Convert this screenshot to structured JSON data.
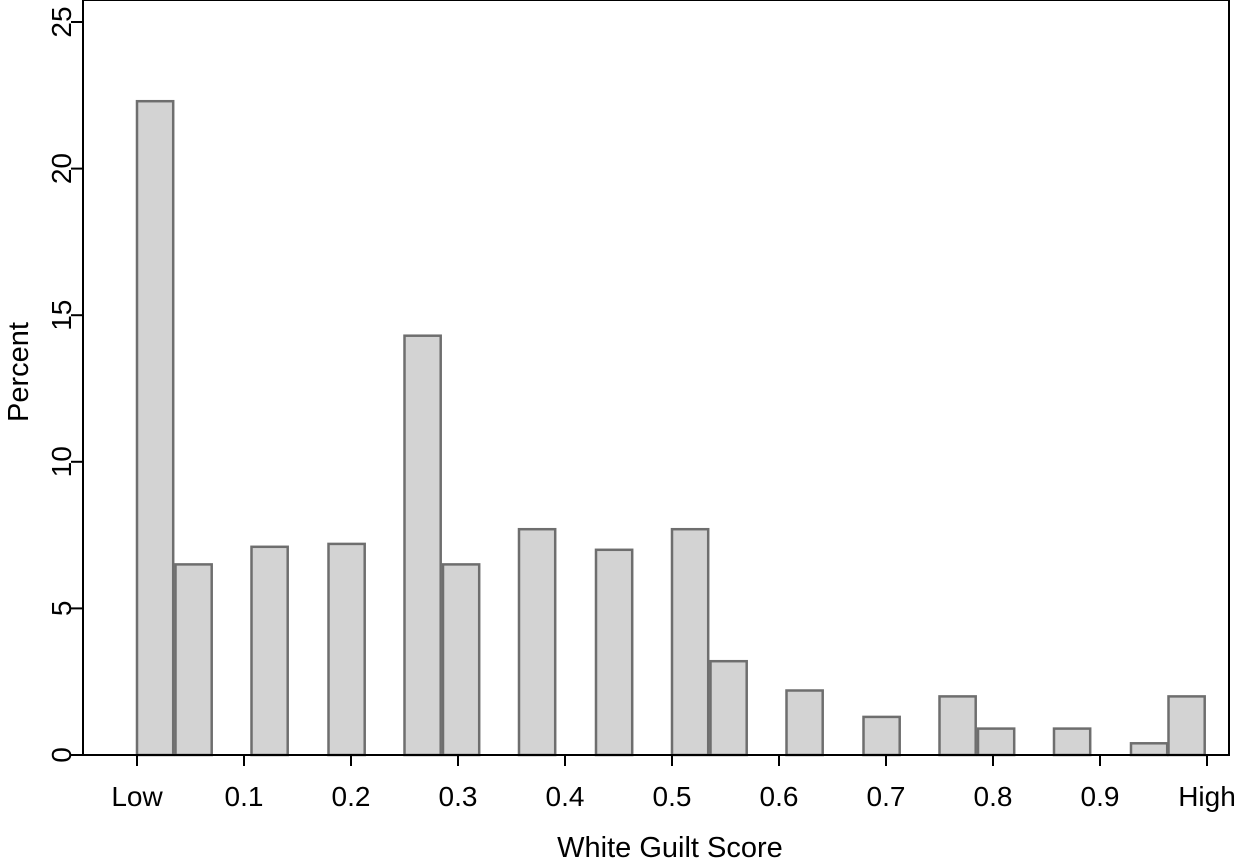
{
  "chart_data": {
    "type": "bar",
    "title": "",
    "xlabel": "White Guilt Score",
    "ylabel": "Percent",
    "xlim": [
      0,
      1
    ],
    "ylim": [
      0,
      25
    ],
    "grid": false,
    "bar_fill": "#d3d3d3",
    "bar_stroke": "#6e6e6e",
    "axis_color": "#000000",
    "bin_width": 0.0357,
    "x_ticks": [
      {
        "value": 0.0,
        "label": "Low"
      },
      {
        "value": 0.1,
        "label": "0.1"
      },
      {
        "value": 0.2,
        "label": "0.2"
      },
      {
        "value": 0.3,
        "label": "0.3"
      },
      {
        "value": 0.4,
        "label": "0.4"
      },
      {
        "value": 0.5,
        "label": "0.5"
      },
      {
        "value": 0.6,
        "label": "0.6"
      },
      {
        "value": 0.7,
        "label": "0.7"
      },
      {
        "value": 0.8,
        "label": "0.8"
      },
      {
        "value": 0.9,
        "label": "0.9"
      },
      {
        "value": 1.0,
        "label": "High"
      }
    ],
    "y_ticks": [
      {
        "value": 0,
        "label": "0"
      },
      {
        "value": 5,
        "label": "5"
      },
      {
        "value": 10,
        "label": "10"
      },
      {
        "value": 15,
        "label": "15"
      },
      {
        "value": 20,
        "label": "20"
      },
      {
        "value": 25,
        "label": "25"
      }
    ],
    "bars": [
      {
        "x": 0.0,
        "value": 22.3
      },
      {
        "x": 0.036,
        "value": 6.5
      },
      {
        "x": 0.107,
        "value": 7.1
      },
      {
        "x": 0.179,
        "value": 7.2
      },
      {
        "x": 0.25,
        "value": 14.3
      },
      {
        "x": 0.286,
        "value": 6.5
      },
      {
        "x": 0.357,
        "value": 7.7
      },
      {
        "x": 0.429,
        "value": 7.0
      },
      {
        "x": 0.5,
        "value": 7.7
      },
      {
        "x": 0.536,
        "value": 3.2
      },
      {
        "x": 0.607,
        "value": 2.2
      },
      {
        "x": 0.679,
        "value": 1.3
      },
      {
        "x": 0.75,
        "value": 2.0
      },
      {
        "x": 0.786,
        "value": 0.9
      },
      {
        "x": 0.857,
        "value": 0.9
      },
      {
        "x": 0.929,
        "value": 0.4
      },
      {
        "x": 0.964,
        "value": 2.0
      }
    ]
  }
}
